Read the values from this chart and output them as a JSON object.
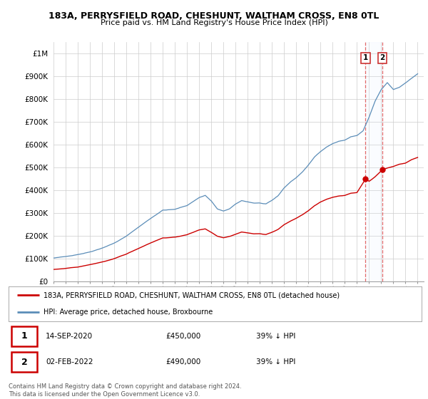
{
  "title": "183A, PERRYSFIELD ROAD, CHESHUNT, WALTHAM CROSS, EN8 0TL",
  "subtitle": "Price paid vs. HM Land Registry's House Price Index (HPI)",
  "ylabel_ticks": [
    "£0",
    "£100K",
    "£200K",
    "£300K",
    "£400K",
    "£500K",
    "£600K",
    "£700K",
    "£800K",
    "£900K",
    "£1M"
  ],
  "ytick_values": [
    0,
    100000,
    200000,
    300000,
    400000,
    500000,
    600000,
    700000,
    800000,
    900000,
    1000000
  ],
  "ylim": [
    0,
    1050000
  ],
  "hpi_color": "#5b8db8",
  "price_color": "#cc0000",
  "sale1_x": 2020.71,
  "sale1_y": 450000,
  "sale2_x": 2022.08,
  "sale2_y": 490000,
  "legend_label1": "183A, PERRYSFIELD ROAD, CHESHUNT, WALTHAM CROSS, EN8 0TL (detached house)",
  "legend_label2": "HPI: Average price, detached house, Broxbourne",
  "table_row1": [
    "1",
    "14-SEP-2020",
    "£450,000",
    "39% ↓ HPI"
  ],
  "table_row2": [
    "2",
    "02-FEB-2022",
    "£490,000",
    "39% ↓ HPI"
  ],
  "footnote": "Contains HM Land Registry data © Crown copyright and database right 2024.\nThis data is licensed under the Open Government Licence v3.0.",
  "bg_color": "#ffffff",
  "grid_color": "#cccccc",
  "shade_color": "#ddeeff",
  "xlim_left": 1995.0,
  "xlim_right": 2025.5
}
